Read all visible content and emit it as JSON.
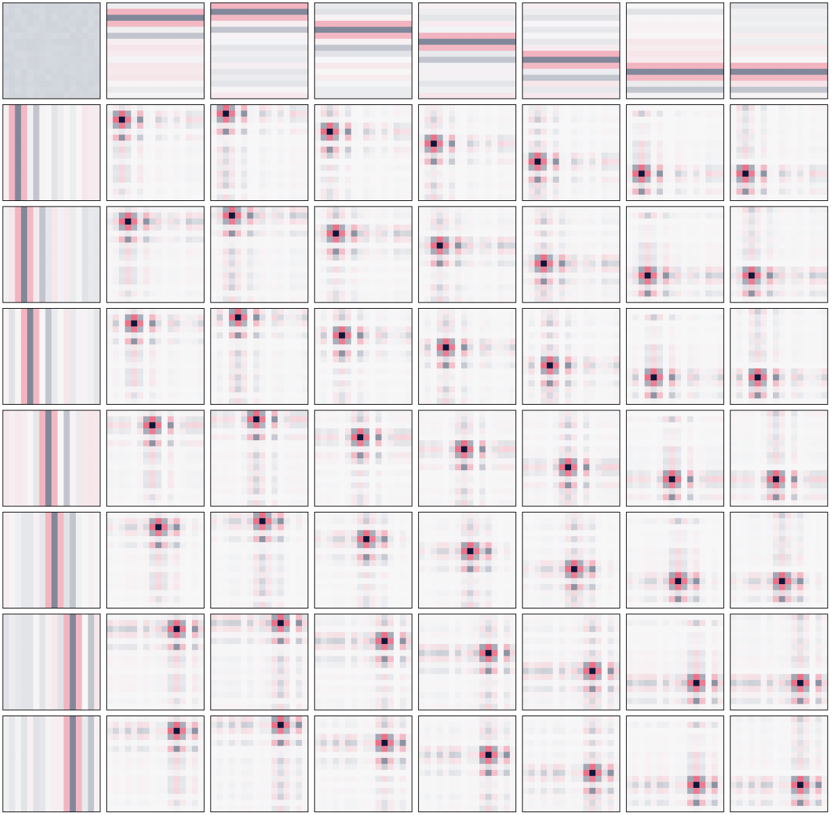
{
  "grid": {
    "rows": 8,
    "columns": 8
  }
}
